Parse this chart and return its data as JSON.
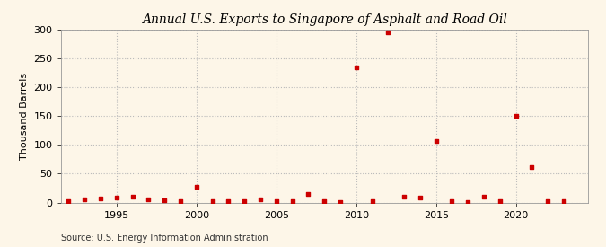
{
  "title": "Annual U.S. Exports to Singapore of Asphalt and Road Oil",
  "ylabel": "Thousand Barrels",
  "source": "Source: U.S. Energy Information Administration",
  "background_color": "#fdf6e8",
  "marker_color": "#cc0000",
  "grid_color": "#bbbbbb",
  "years": [
    1992,
    1993,
    1994,
    1995,
    1996,
    1997,
    1998,
    1999,
    2000,
    2001,
    2002,
    2003,
    2004,
    2005,
    2006,
    2007,
    2008,
    2009,
    2010,
    2011,
    2012,
    2013,
    2014,
    2015,
    2016,
    2017,
    2018,
    2019,
    2020,
    2021,
    2022,
    2023
  ],
  "values": [
    3,
    5,
    7,
    8,
    10,
    5,
    4,
    3,
    28,
    3,
    2,
    2,
    5,
    2,
    2,
    15,
    2,
    1,
    234,
    2,
    295,
    10,
    8,
    106,
    2,
    1,
    10,
    2,
    151,
    62,
    3,
    2
  ],
  "ylim": [
    0,
    300
  ],
  "yticks": [
    0,
    50,
    100,
    150,
    200,
    250,
    300
  ],
  "xticks": [
    1995,
    2000,
    2005,
    2010,
    2015,
    2020
  ],
  "xlim": [
    1991.5,
    2024.5
  ],
  "title_fontsize": 10,
  "label_fontsize": 8,
  "tick_fontsize": 8,
  "source_fontsize": 7
}
